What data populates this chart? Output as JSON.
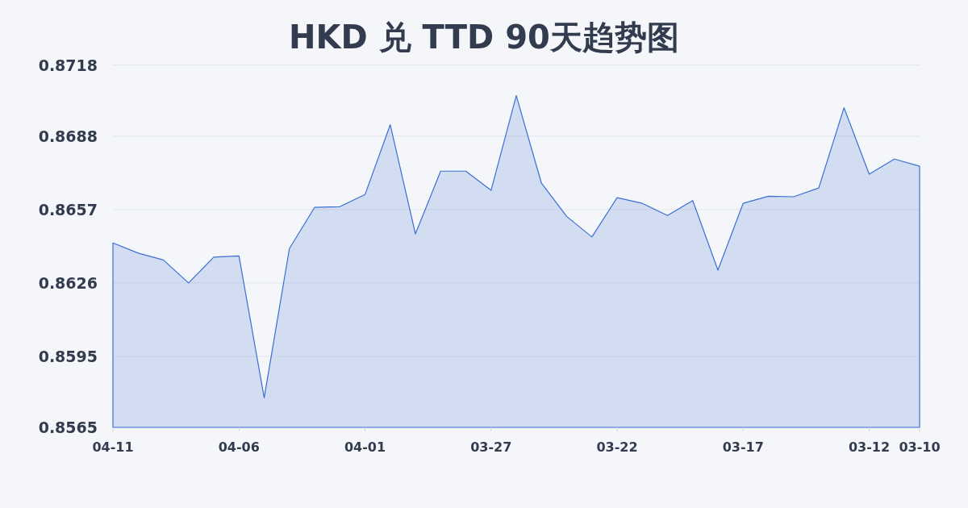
{
  "chart_data": {
    "type": "area",
    "title": "HKD 兑 TTD 90天趋势图",
    "categories": [
      "04-11",
      null,
      null,
      null,
      null,
      "04-06",
      null,
      null,
      null,
      null,
      "04-01",
      null,
      null,
      null,
      null,
      "03-27",
      null,
      null,
      null,
      null,
      "03-22",
      null,
      null,
      null,
      null,
      "03-17",
      null,
      null,
      null,
      null,
      "03-12",
      null,
      "03-10"
    ],
    "values": [
      0.86429,
      0.86386,
      0.86357,
      0.8626,
      0.86369,
      0.86374,
      0.85775,
      0.86405,
      0.86579,
      0.86582,
      0.86633,
      0.86928,
      0.86467,
      0.86732,
      0.86732,
      0.86651,
      0.87051,
      0.86681,
      0.86541,
      0.86454,
      0.8662,
      0.86596,
      0.86545,
      0.86608,
      0.86314,
      0.86596,
      0.86626,
      0.86624,
      0.86661,
      0.87,
      0.86719,
      0.86783,
      0.86753
    ],
    "color": "#3b6fd4",
    "ylim": [
      0.8565,
      0.8718
    ],
    "yticks": [
      0.8565,
      0.8595,
      0.8626,
      0.8657,
      0.8688,
      0.8718
    ],
    "grid": "y"
  }
}
